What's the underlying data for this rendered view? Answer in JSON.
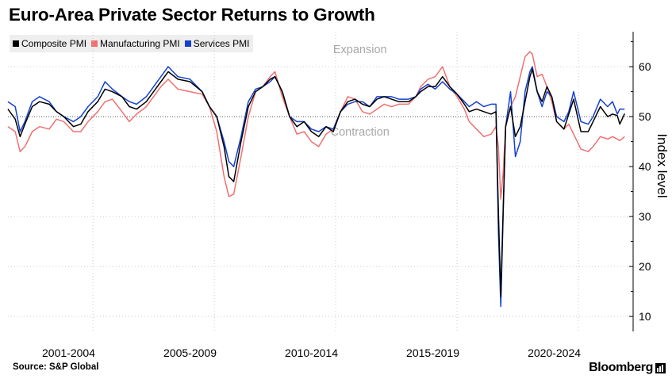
{
  "title": "Euro-Area Private Sector Returns to Growth",
  "legend": [
    {
      "label": "Composite PMI",
      "color": "#000000"
    },
    {
      "label": "Manufacturing PMI",
      "color": "#f07070"
    },
    {
      "label": "Services PMI",
      "color": "#1540d0"
    }
  ],
  "source": "Source: S&P Global",
  "brand": "Bloomberg",
  "chart_data": {
    "type": "line",
    "title": "Euro-Area Private Sector Returns to Growth",
    "xlabel": "",
    "ylabel": "Index level",
    "ylim": [
      7,
      67
    ],
    "xlim": [
      2000.0,
      2025.75
    ],
    "yticks": [
      10,
      20,
      30,
      40,
      50,
      60
    ],
    "xticklabels": [
      "2001-2004",
      "2005-2009",
      "2010-2014",
      "2015-2019",
      "2020-2024"
    ],
    "xticklabel_years": [
      2002.5,
      2007.5,
      2012.5,
      2017.5,
      2022.5
    ],
    "xgrid_years": [
      2003.5,
      2008.5,
      2013.5,
      2018.5,
      2023.5
    ],
    "reference_line": {
      "y": 50,
      "style": "dotted"
    },
    "annotations": [
      {
        "text": "Expansion",
        "x": 2014.5,
        "y": 62.7
      },
      {
        "text": "Contraction",
        "x": 2014.5,
        "y": 46.2
      }
    ],
    "series": [
      {
        "name": "Composite PMI",
        "color": "#000000",
        "points": [
          [
            2000.0,
            51.5
          ],
          [
            2000.3,
            49.5
          ],
          [
            2000.5,
            46
          ],
          [
            2000.7,
            48.5
          ],
          [
            2001.0,
            52
          ],
          [
            2001.3,
            53
          ],
          [
            2001.7,
            52.5
          ],
          [
            2002.0,
            51
          ],
          [
            2002.3,
            50
          ],
          [
            2002.7,
            48
          ],
          [
            2003.0,
            48.5
          ],
          [
            2003.3,
            51
          ],
          [
            2003.7,
            53
          ],
          [
            2004.0,
            55.5
          ],
          [
            2004.3,
            55
          ],
          [
            2004.7,
            54
          ],
          [
            2005.0,
            52
          ],
          [
            2005.3,
            51.5
          ],
          [
            2005.7,
            53
          ],
          [
            2006.0,
            55
          ],
          [
            2006.3,
            57
          ],
          [
            2006.6,
            59
          ],
          [
            2007.0,
            57.5
          ],
          [
            2007.5,
            57
          ],
          [
            2008.0,
            55
          ],
          [
            2008.3,
            52
          ],
          [
            2008.6,
            50
          ],
          [
            2008.9,
            44
          ],
          [
            2009.1,
            38
          ],
          [
            2009.3,
            37
          ],
          [
            2009.6,
            45
          ],
          [
            2009.9,
            52
          ],
          [
            2010.2,
            55
          ],
          [
            2010.5,
            56
          ],
          [
            2010.8,
            57.5
          ],
          [
            2011.0,
            58
          ],
          [
            2011.3,
            55
          ],
          [
            2011.6,
            50
          ],
          [
            2011.9,
            48
          ],
          [
            2012.2,
            49
          ],
          [
            2012.5,
            47
          ],
          [
            2012.8,
            46
          ],
          [
            2013.1,
            48
          ],
          [
            2013.4,
            47
          ],
          [
            2013.7,
            51
          ],
          [
            2014.0,
            53
          ],
          [
            2014.3,
            53.5
          ],
          [
            2014.6,
            52.5
          ],
          [
            2014.9,
            52
          ],
          [
            2015.2,
            53.5
          ],
          [
            2015.5,
            54
          ],
          [
            2015.8,
            53.5
          ],
          [
            2016.1,
            53
          ],
          [
            2016.5,
            53
          ],
          [
            2016.8,
            54
          ],
          [
            2017.0,
            55
          ],
          [
            2017.3,
            56
          ],
          [
            2017.6,
            56
          ],
          [
            2017.9,
            58
          ],
          [
            2018.2,
            56
          ],
          [
            2018.5,
            54.5
          ],
          [
            2018.8,
            52.5
          ],
          [
            2019.0,
            51
          ],
          [
            2019.3,
            51.5
          ],
          [
            2019.6,
            51
          ],
          [
            2019.9,
            50.5
          ],
          [
            2020.1,
            51
          ],
          [
            2020.2,
            31
          ],
          [
            2020.3,
            14
          ],
          [
            2020.4,
            32
          ],
          [
            2020.5,
            48
          ],
          [
            2020.7,
            52
          ],
          [
            2020.9,
            46
          ],
          [
            2021.1,
            48
          ],
          [
            2021.3,
            53
          ],
          [
            2021.5,
            58
          ],
          [
            2021.6,
            59.5
          ],
          [
            2021.8,
            55
          ],
          [
            2022.0,
            53
          ],
          [
            2022.2,
            56
          ],
          [
            2022.4,
            54
          ],
          [
            2022.6,
            49
          ],
          [
            2022.9,
            47.5
          ],
          [
            2023.1,
            50.5
          ],
          [
            2023.3,
            53.5
          ],
          [
            2023.6,
            47
          ],
          [
            2023.9,
            47
          ],
          [
            2024.1,
            49
          ],
          [
            2024.4,
            52
          ],
          [
            2024.7,
            50
          ],
          [
            2024.9,
            50.5
          ],
          [
            2025.1,
            50.2
          ],
          [
            2025.2,
            48.5
          ],
          [
            2025.4,
            50.6
          ]
        ]
      },
      {
        "name": "Manufacturing PMI",
        "color": "#f07070",
        "points": [
          [
            2000.0,
            48
          ],
          [
            2000.3,
            47
          ],
          [
            2000.5,
            43
          ],
          [
            2000.7,
            44
          ],
          [
            2001.0,
            47
          ],
          [
            2001.3,
            48
          ],
          [
            2001.7,
            47.5
          ],
          [
            2002.0,
            49.5
          ],
          [
            2002.3,
            49
          ],
          [
            2002.7,
            47
          ],
          [
            2003.0,
            47
          ],
          [
            2003.3,
            49
          ],
          [
            2003.7,
            51
          ],
          [
            2004.0,
            53
          ],
          [
            2004.3,
            53.5
          ],
          [
            2004.7,
            51
          ],
          [
            2005.0,
            49
          ],
          [
            2005.3,
            50.5
          ],
          [
            2005.7,
            52
          ],
          [
            2006.0,
            54
          ],
          [
            2006.3,
            56
          ],
          [
            2006.6,
            57.5
          ],
          [
            2007.0,
            55.5
          ],
          [
            2007.5,
            55
          ],
          [
            2008.0,
            54.5
          ],
          [
            2008.3,
            52
          ],
          [
            2008.6,
            47
          ],
          [
            2008.9,
            38
          ],
          [
            2009.1,
            34
          ],
          [
            2009.3,
            34.5
          ],
          [
            2009.6,
            42
          ],
          [
            2009.9,
            50
          ],
          [
            2010.2,
            55
          ],
          [
            2010.5,
            56
          ],
          [
            2010.8,
            58
          ],
          [
            2011.0,
            59
          ],
          [
            2011.3,
            54
          ],
          [
            2011.6,
            50
          ],
          [
            2011.9,
            46.5
          ],
          [
            2012.2,
            47
          ],
          [
            2012.5,
            45
          ],
          [
            2012.8,
            44
          ],
          [
            2013.1,
            46.5
          ],
          [
            2013.4,
            47.5
          ],
          [
            2013.7,
            51
          ],
          [
            2014.0,
            54
          ],
          [
            2014.3,
            53.5
          ],
          [
            2014.6,
            51
          ],
          [
            2014.9,
            50.5
          ],
          [
            2015.2,
            51.5
          ],
          [
            2015.5,
            52.5
          ],
          [
            2015.8,
            52
          ],
          [
            2016.1,
            52.5
          ],
          [
            2016.5,
            52.5
          ],
          [
            2016.8,
            54
          ],
          [
            2017.0,
            56
          ],
          [
            2017.3,
            57.5
          ],
          [
            2017.6,
            58
          ],
          [
            2017.9,
            60
          ],
          [
            2018.2,
            56
          ],
          [
            2018.5,
            54
          ],
          [
            2018.8,
            51.5
          ],
          [
            2019.0,
            49
          ],
          [
            2019.3,
            47.5
          ],
          [
            2019.6,
            46
          ],
          [
            2019.9,
            46.5
          ],
          [
            2020.1,
            48
          ],
          [
            2020.2,
            44
          ],
          [
            2020.3,
            33.5
          ],
          [
            2020.4,
            39
          ],
          [
            2020.5,
            48
          ],
          [
            2020.7,
            52
          ],
          [
            2020.9,
            54
          ],
          [
            2021.1,
            58
          ],
          [
            2021.3,
            62
          ],
          [
            2021.5,
            63
          ],
          [
            2021.6,
            62.5
          ],
          [
            2021.8,
            58
          ],
          [
            2022.0,
            58.5
          ],
          [
            2022.2,
            56
          ],
          [
            2022.4,
            53
          ],
          [
            2022.6,
            49
          ],
          [
            2022.9,
            47.5
          ],
          [
            2023.1,
            48.5
          ],
          [
            2023.3,
            46.5
          ],
          [
            2023.6,
            43.5
          ],
          [
            2023.9,
            43
          ],
          [
            2024.1,
            44
          ],
          [
            2024.4,
            46
          ],
          [
            2024.7,
            45.5
          ],
          [
            2024.9,
            46
          ],
          [
            2025.1,
            45.5
          ],
          [
            2025.2,
            45.2
          ],
          [
            2025.4,
            46
          ]
        ]
      },
      {
        "name": "Services PMI",
        "color": "#1540d0",
        "points": [
          [
            2000.0,
            53
          ],
          [
            2000.3,
            52
          ],
          [
            2000.5,
            47
          ],
          [
            2000.7,
            49
          ],
          [
            2001.0,
            53
          ],
          [
            2001.3,
            54
          ],
          [
            2001.7,
            53
          ],
          [
            2002.0,
            51
          ],
          [
            2002.3,
            50
          ],
          [
            2002.7,
            49
          ],
          [
            2003.0,
            50
          ],
          [
            2003.3,
            52
          ],
          [
            2003.7,
            54
          ],
          [
            2004.0,
            57
          ],
          [
            2004.3,
            55.5
          ],
          [
            2004.7,
            54
          ],
          [
            2005.0,
            53
          ],
          [
            2005.3,
            52.5
          ],
          [
            2005.7,
            54
          ],
          [
            2006.0,
            56
          ],
          [
            2006.3,
            58
          ],
          [
            2006.6,
            60
          ],
          [
            2007.0,
            58
          ],
          [
            2007.5,
            57.5
          ],
          [
            2008.0,
            55
          ],
          [
            2008.3,
            52
          ],
          [
            2008.6,
            50
          ],
          [
            2008.9,
            45
          ],
          [
            2009.1,
            41
          ],
          [
            2009.3,
            40
          ],
          [
            2009.6,
            46
          ],
          [
            2009.9,
            53
          ],
          [
            2010.2,
            55.5
          ],
          [
            2010.5,
            56
          ],
          [
            2010.8,
            57
          ],
          [
            2011.0,
            58
          ],
          [
            2011.3,
            55
          ],
          [
            2011.6,
            50
          ],
          [
            2011.9,
            49
          ],
          [
            2012.2,
            49
          ],
          [
            2012.5,
            47.5
          ],
          [
            2012.8,
            47
          ],
          [
            2013.1,
            48
          ],
          [
            2013.4,
            47.5
          ],
          [
            2013.7,
            51
          ],
          [
            2014.0,
            52.5
          ],
          [
            2014.3,
            53
          ],
          [
            2014.6,
            53
          ],
          [
            2014.9,
            52
          ],
          [
            2015.2,
            54
          ],
          [
            2015.5,
            54
          ],
          [
            2015.8,
            54
          ],
          [
            2016.1,
            53.5
          ],
          [
            2016.5,
            53.5
          ],
          [
            2016.8,
            54
          ],
          [
            2017.0,
            55.5
          ],
          [
            2017.3,
            56.5
          ],
          [
            2017.6,
            55.5
          ],
          [
            2017.9,
            57
          ],
          [
            2018.2,
            55.5
          ],
          [
            2018.5,
            54.5
          ],
          [
            2018.8,
            53
          ],
          [
            2019.0,
            52
          ],
          [
            2019.3,
            53
          ],
          [
            2019.6,
            52
          ],
          [
            2019.9,
            52.5
          ],
          [
            2020.1,
            52.5
          ],
          [
            2020.2,
            27
          ],
          [
            2020.3,
            12
          ],
          [
            2020.4,
            31
          ],
          [
            2020.5,
            48
          ],
          [
            2020.7,
            55
          ],
          [
            2020.9,
            42
          ],
          [
            2021.1,
            45
          ],
          [
            2021.3,
            55
          ],
          [
            2021.5,
            59
          ],
          [
            2021.6,
            60
          ],
          [
            2021.8,
            55
          ],
          [
            2022.0,
            52
          ],
          [
            2022.2,
            55
          ],
          [
            2022.4,
            54
          ],
          [
            2022.6,
            50
          ],
          [
            2022.9,
            49
          ],
          [
            2023.1,
            51
          ],
          [
            2023.3,
            55
          ],
          [
            2023.6,
            49
          ],
          [
            2023.9,
            48.5
          ],
          [
            2024.1,
            50
          ],
          [
            2024.4,
            53.5
          ],
          [
            2024.7,
            52
          ],
          [
            2024.9,
            53
          ],
          [
            2025.1,
            50.5
          ],
          [
            2025.2,
            51.5
          ],
          [
            2025.4,
            51.5
          ]
        ]
      }
    ]
  }
}
